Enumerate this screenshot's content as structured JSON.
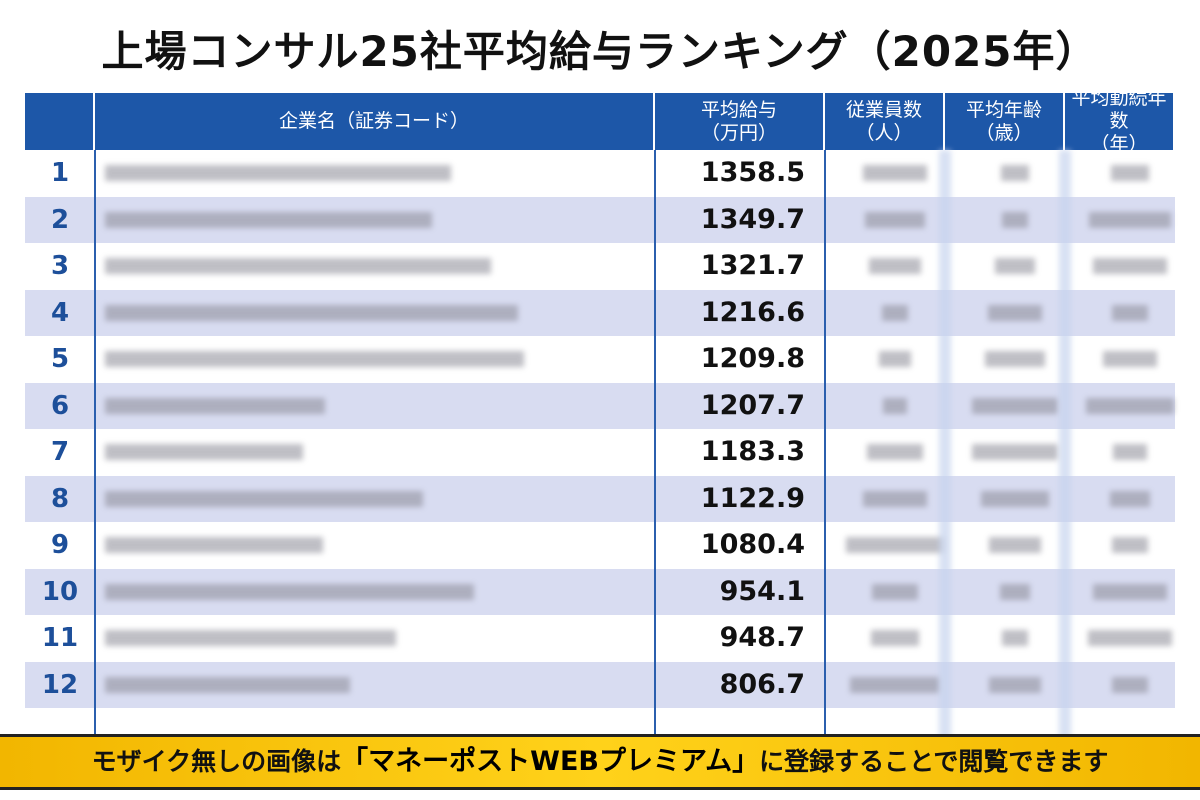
{
  "header": {
    "title": "上場コンサル25社平均給与ランキング（2025年）"
  },
  "table": {
    "columns": [
      [
        "企業名（証券コード）"
      ],
      [
        "平均給与",
        "（万円）"
      ],
      [
        "従業員数",
        "（人）"
      ],
      [
        "平均年齢",
        "（歳）"
      ],
      [
        "平均勤続年数",
        "（年）"
      ]
    ],
    "rows": [
      {
        "rank": "1",
        "salary": "1358.5"
      },
      {
        "rank": "2",
        "salary": "1349.7"
      },
      {
        "rank": "3",
        "salary": "1321.7"
      },
      {
        "rank": "4",
        "salary": "1216.6"
      },
      {
        "rank": "5",
        "salary": "1209.8"
      },
      {
        "rank": "6",
        "salary": "1207.7"
      },
      {
        "rank": "7",
        "salary": "1183.3"
      },
      {
        "rank": "8",
        "salary": "1122.9"
      },
      {
        "rank": "9",
        "salary": "1080.4"
      },
      {
        "rank": "10",
        "salary": "954.1"
      },
      {
        "rank": "11",
        "salary": "948.7"
      },
      {
        "rank": "12",
        "salary": "806.7"
      }
    ]
  },
  "banner": {
    "parts": [
      "モザイク無しの画像は",
      "「マネーポストWEBプレミアム」",
      "に登録することで閲覧できます"
    ]
  }
}
